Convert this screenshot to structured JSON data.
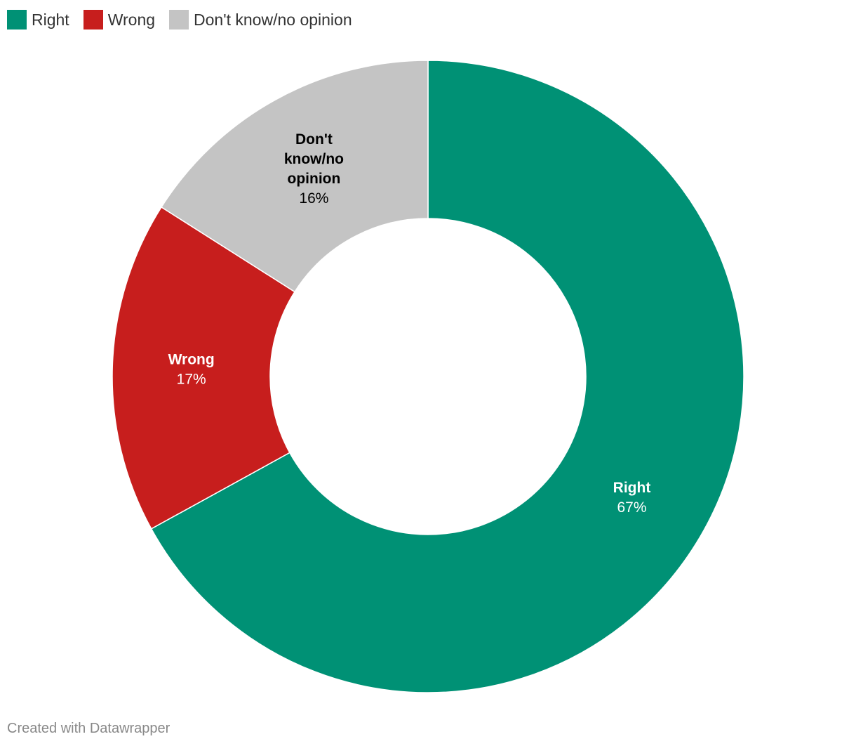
{
  "chart_data": {
    "type": "pie",
    "donut": true,
    "title": "",
    "legend_position": "top-left",
    "slices": [
      {
        "name": "Right",
        "value": 67,
        "label": "67%",
        "color": "#009175",
        "label_color": "#ffffff"
      },
      {
        "name": "Wrong",
        "value": 17,
        "label": "17%",
        "color": "#c71e1d",
        "label_color": "#ffffff"
      },
      {
        "name": "Don't know/no opinion",
        "value": 16,
        "label": "16%",
        "color": "#c4c4c4",
        "label_color": "#000000"
      }
    ]
  },
  "legend": {
    "items": [
      {
        "label": "Right",
        "color": "#009175"
      },
      {
        "label": "Wrong",
        "color": "#c71e1d"
      },
      {
        "label": "Don't know/no opinion",
        "color": "#c4c4c4"
      }
    ]
  },
  "footer": {
    "credit": "Created with Datawrapper"
  }
}
